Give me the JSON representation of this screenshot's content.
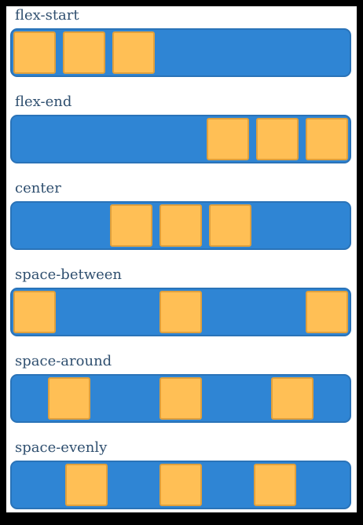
{
  "colors": {
    "track": "#2f85d4",
    "track_border": "#2a73b8",
    "box": "#ffbf55",
    "box_border": "#e0a03c",
    "label": "#2f4f6f"
  },
  "sections": [
    {
      "label": "flex-start",
      "items": 3
    },
    {
      "label": "flex-end",
      "items": 3
    },
    {
      "label": "center",
      "items": 3
    },
    {
      "label": "space-between",
      "items": 3
    },
    {
      "label": "space-around",
      "items": 3
    },
    {
      "label": "space-evenly",
      "items": 3
    }
  ]
}
